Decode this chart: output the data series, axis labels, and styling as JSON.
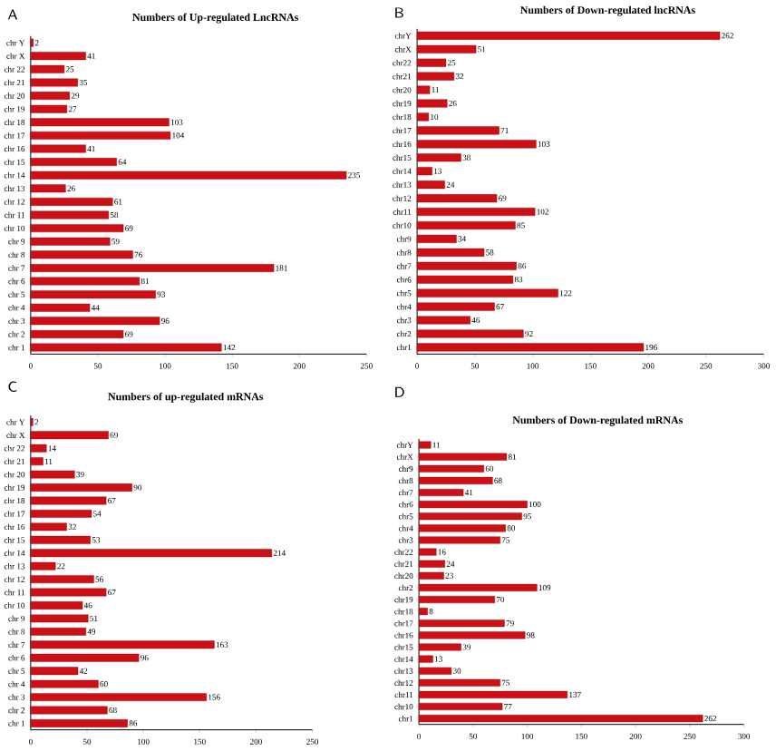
{
  "chart_data": [
    {
      "type": "bar",
      "orientation": "horizontal",
      "title": "Numbers of Up-regulated LncRNAs",
      "annotations": [
        "A"
      ],
      "color": "#cc1016",
      "data_labels": true,
      "categories": [
        "chr Y",
        "chr X",
        "chr 22",
        "chr 21",
        "chr 20",
        "chr 19",
        "chr 18",
        "chr 17",
        "chr 16",
        "chr 15",
        "chr 14",
        "chr 13",
        "chr 12",
        "chr 11",
        "chr 10",
        "chr 9",
        "chr 8",
        "chr 7",
        "chr 6",
        "chr 5",
        "chr 4",
        "chr 3",
        "chr 2",
        "chr 1"
      ],
      "values": [
        2,
        41,
        25,
        35,
        29,
        27,
        103,
        104,
        41,
        64,
        235,
        26,
        61,
        58,
        69,
        59,
        76,
        181,
        81,
        93,
        44,
        96,
        69,
        142
      ],
      "xlim": [
        0,
        250
      ],
      "xticks": [
        0,
        50,
        100,
        150,
        200,
        250
      ]
    },
    {
      "type": "bar",
      "orientation": "horizontal",
      "title": "Numbers of Down-regulated lncRNAs",
      "annotations": [
        "B"
      ],
      "color": "#cc1016",
      "data_labels": true,
      "categories": [
        "chrY",
        "chrX",
        "chr22",
        "chr21",
        "chr20",
        "chr19",
        "chr18",
        "chr17",
        "chr16",
        "chr15",
        "chr14",
        "chr13",
        "chr12",
        "chr11",
        "chr10",
        "chr9",
        "chr8",
        "chr7",
        "chr6",
        "chr5",
        "chr4",
        "chr3",
        "chr2",
        "chr1"
      ],
      "values": [
        262,
        51,
        25,
        32,
        11,
        26,
        10,
        71,
        103,
        38,
        13,
        24,
        69,
        102,
        85,
        34,
        58,
        86,
        83,
        122,
        67,
        46,
        92,
        196
      ],
      "xlim": [
        0,
        300
      ],
      "xticks": [
        0,
        50,
        100,
        150,
        200,
        250,
        300
      ]
    },
    {
      "type": "bar",
      "orientation": "horizontal",
      "title": "Numbers of up-regulated mRNAs",
      "annotations": [
        "C"
      ],
      "color": "#cc1016",
      "data_labels": true,
      "categories": [
        "chr Y",
        "chr X",
        "chr 22",
        "chr 21",
        "chr 20",
        "chr 19",
        "chr 18",
        "chr 17",
        "chr 16",
        "chr 15",
        "chr 14",
        "chr 13",
        "chr 12",
        "chr 11",
        "chr 10",
        "chr 9",
        "chr 8",
        "chr 7",
        "chr 6",
        "chr 5",
        "chr 4",
        "chr 3",
        "chr 2",
        "chr 1"
      ],
      "values": [
        2,
        69,
        14,
        11,
        39,
        90,
        67,
        54,
        32,
        53,
        214,
        22,
        56,
        67,
        46,
        51,
        49,
        163,
        96,
        42,
        60,
        156,
        68,
        86
      ],
      "xlim": [
        0,
        250
      ],
      "xticks": [
        0,
        50,
        100,
        150,
        200,
        250
      ]
    },
    {
      "type": "bar",
      "orientation": "horizontal",
      "title": "Numbers of Down-regulated mRNAs",
      "annotations": [
        "D"
      ],
      "color": "#cc1016",
      "data_labels": true,
      "categories": [
        "chrY",
        "chrX",
        "chr9",
        "chr8",
        "chr7",
        "chr6",
        "chr5",
        "chr4",
        "chr3",
        "chr22",
        "chr21",
        "chr20",
        "chr2",
        "chr19",
        "chr18",
        "chr17",
        "chr16",
        "chr15",
        "chr14",
        "chr13",
        "chr12",
        "chr11",
        "chr10",
        "chr1"
      ],
      "values": [
        11,
        81,
        60,
        68,
        41,
        100,
        95,
        80,
        75,
        16,
        24,
        23,
        109,
        70,
        8,
        79,
        98,
        39,
        13,
        30,
        75,
        137,
        77,
        262
      ],
      "xlim": [
        0,
        300
      ],
      "xticks": [
        0,
        50,
        100,
        150,
        200,
        250,
        300
      ]
    }
  ]
}
